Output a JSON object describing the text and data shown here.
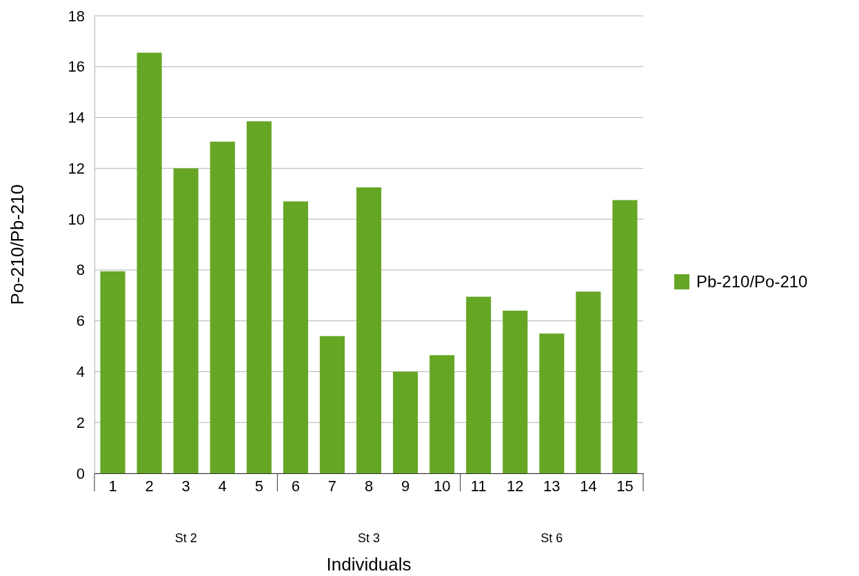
{
  "chart_data": {
    "type": "bar",
    "xlabel": "Individuals",
    "ylabel": "Po-210/Pb-210",
    "categories": [
      "1",
      "2",
      "3",
      "4",
      "5",
      "6",
      "7",
      "8",
      "9",
      "10",
      "11",
      "12",
      "13",
      "14",
      "15"
    ],
    "series": [
      {
        "name": "Pb-210/Po-210",
        "color": "#65a624",
        "values": [
          7.95,
          16.55,
          12.0,
          13.05,
          13.85,
          10.7,
          5.4,
          11.25,
          4.0,
          4.65,
          6.95,
          6.4,
          5.5,
          7.15,
          10.75
        ]
      }
    ],
    "ylim": [
      0,
      18
    ],
    "yticks": [
      0,
      2,
      4,
      6,
      8,
      10,
      12,
      14,
      16,
      18
    ],
    "grid": "y",
    "legend": "right",
    "annotations": [
      "St 2",
      "St 3",
      "St 6"
    ]
  }
}
